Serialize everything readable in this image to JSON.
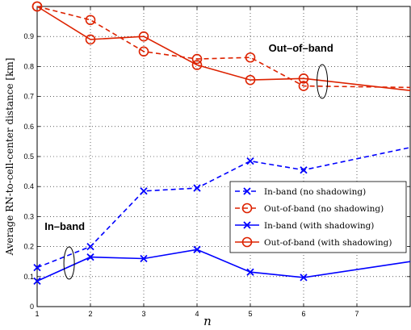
{
  "chart_data": {
    "type": "line",
    "xlabel": "n",
    "ylabel": "Average RN-to-cell-center distance [km]",
    "xlim": [
      1,
      8
    ],
    "ylim": [
      0,
      1.0
    ],
    "x_ticks": [
      "1",
      "2",
      "3",
      "4",
      "5",
      "6",
      "7"
    ],
    "y_ticks": [
      "0",
      "0.1",
      "0.2",
      "0.3",
      "0.4",
      "0.5",
      "0.6",
      "0.7",
      "0.8",
      "0.9"
    ],
    "grid": true,
    "legend_position": "center-right",
    "annotations": [
      "In–band",
      "Out–of–band"
    ],
    "series": [
      {
        "name": "In-band (no shadowing)",
        "color": "#0000ff",
        "style": "dashed",
        "marker": "x",
        "x": [
          1,
          2,
          3,
          4,
          5,
          6,
          8
        ],
        "y": [
          0.13,
          0.2,
          0.385,
          0.395,
          0.485,
          0.455,
          0.53
        ]
      },
      {
        "name": "Out-of-band (no shadowing)",
        "color": "#dd2200",
        "style": "dashed",
        "marker": "o",
        "x": [
          1,
          2,
          3,
          4,
          5,
          6,
          8
        ],
        "y": [
          1.0,
          0.955,
          0.85,
          0.825,
          0.83,
          0.735,
          0.73
        ]
      },
      {
        "name": "In-band (with shadowing)",
        "color": "#0000ff",
        "style": "solid",
        "marker": "x",
        "x": [
          1,
          2,
          3,
          4,
          5,
          6,
          8
        ],
        "y": [
          0.085,
          0.165,
          0.16,
          0.19,
          0.115,
          0.097,
          0.15
        ]
      },
      {
        "name": "Out-of-band (with shadowing)",
        "color": "#dd2200",
        "style": "solid",
        "marker": "o",
        "x": [
          1,
          2,
          3,
          4,
          5,
          6,
          8
        ],
        "y": [
          1.0,
          0.89,
          0.9,
          0.805,
          0.755,
          0.76,
          0.72
        ]
      }
    ]
  }
}
